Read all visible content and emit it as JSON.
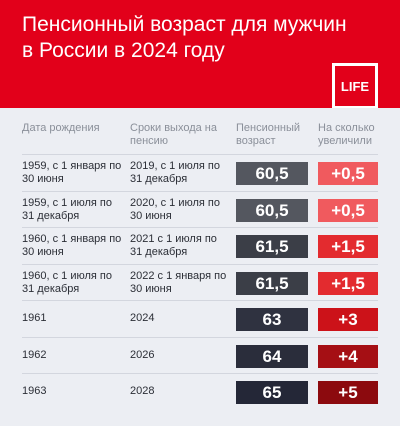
{
  "header": {
    "title": "Пенсионный возраст для мужчин в России в 2024 году",
    "logo_text": "LIFE",
    "brand_color": "#e2001a"
  },
  "columns": {
    "birth": "Дата рождения",
    "retire": "Сроки выхода на пенсию",
    "age": "Пенсионный возраст",
    "increase": "На сколько увеличили"
  },
  "rows": [
    {
      "birth": "1959, с 1 января по 30 июня",
      "retire": "2019, с 1 июля по 31 декабря",
      "age": "60,5",
      "increase": "+0,5",
      "age_color": "#54575f",
      "inc_color": "#f05a5e"
    },
    {
      "birth": "1959, с 1 июля по 31 декабря",
      "retire": "2020, с 1 июля по 30 июня",
      "age": "60,5",
      "increase": "+0,5",
      "age_color": "#54575f",
      "inc_color": "#f05a5e"
    },
    {
      "birth": "1960, с 1 января по 30 июня",
      "retire": "2021 с 1 июля по 31 декабря",
      "age": "61,5",
      "increase": "+1,5",
      "age_color": "#3b3e47",
      "inc_color": "#e32b2f"
    },
    {
      "birth": "1960, с 1 июля по 31 декабря",
      "retire": "2022 с 1 января по 30 июня",
      "age": "61,5",
      "increase": "+1,5",
      "age_color": "#3b3e47",
      "inc_color": "#e32b2f"
    },
    {
      "birth": "1961",
      "retire": "2024",
      "age": "63",
      "increase": "+3",
      "age_color": "#2f3240",
      "inc_color": "#cc1219"
    },
    {
      "birth": "1962",
      "retire": "2026",
      "age": "64",
      "increase": "+4",
      "age_color": "#2a2d3b",
      "inc_color": "#a50f14"
    },
    {
      "birth": "1963",
      "retire": "2028",
      "age": "65",
      "increase": "+5",
      "age_color": "#242737",
      "inc_color": "#8c0a0e"
    }
  ]
}
